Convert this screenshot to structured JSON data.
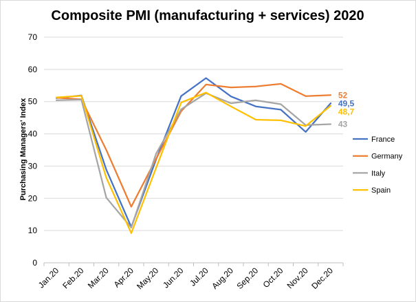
{
  "chart_data": {
    "type": "line",
    "title": "Composite PMI (manufacturing + services) 2020",
    "xlabel": "",
    "ylabel": "Purchasing Managers' Index",
    "ylim": [
      0,
      70
    ],
    "yticks": [
      0,
      10,
      20,
      30,
      40,
      50,
      60,
      70
    ],
    "grid": true,
    "legend_position": "right",
    "categories": [
      "Jan.20",
      "Feb.20",
      "Mar.20",
      "Apr.20",
      "May.20",
      "Jun.20",
      "Jul.20",
      "Aug.20",
      "Sep.20",
      "Oct.20",
      "Nov.20",
      "Dec.20"
    ],
    "series": [
      {
        "name": "France",
        "color": "#4472c4",
        "end_label": "49,5",
        "values": [
          51.1,
          51.9,
          28.9,
          11.1,
          32.1,
          51.7,
          57.3,
          51.6,
          48.5,
          47.5,
          40.6,
          49.5
        ]
      },
      {
        "name": "Germany",
        "color": "#ed7d31",
        "end_label": "52",
        "values": [
          51.2,
          50.7,
          35.0,
          17.4,
          32.3,
          47.0,
          55.3,
          54.4,
          54.7,
          55.5,
          51.7,
          52.0
        ]
      },
      {
        "name": "Italy",
        "color": "#a5a5a5",
        "end_label": "43",
        "values": [
          50.4,
          50.6,
          20.2,
          10.9,
          33.9,
          47.6,
          52.6,
          49.5,
          50.4,
          49.2,
          42.7,
          43.0
        ]
      },
      {
        "name": "Spain",
        "color": "#ffc000",
        "end_label": "48,7",
        "values": [
          51.3,
          51.8,
          26.4,
          9.2,
          29.5,
          49.7,
          52.8,
          48.5,
          44.4,
          44.2,
          42.4,
          48.7
        ]
      }
    ]
  }
}
